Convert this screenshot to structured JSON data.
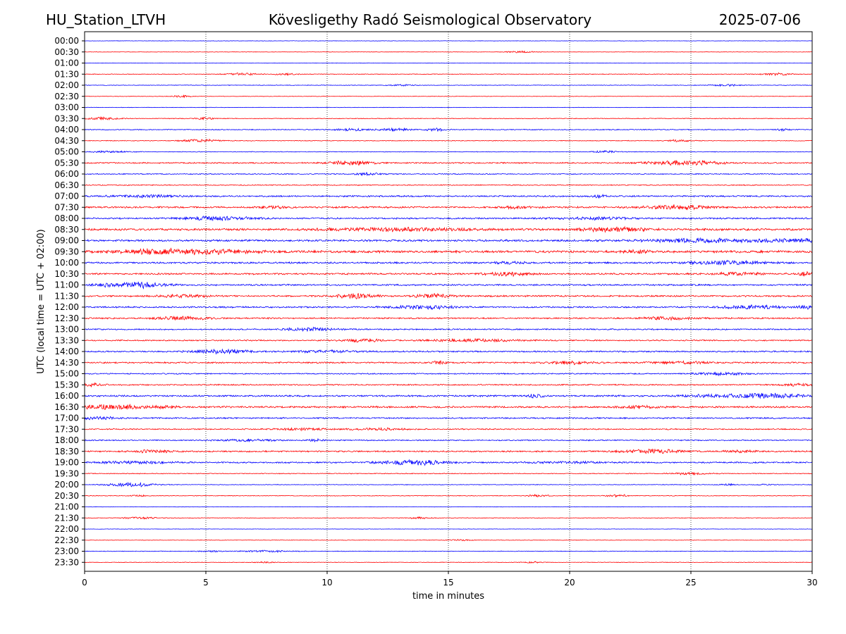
{
  "header": {
    "station": "HU_Station_LTVH",
    "observatory": "Kövesligethy Radó Seismological Observatory",
    "date": "2025-07-06"
  },
  "chart_data": {
    "type": "line",
    "title": "Kövesligethy Radó Seismological Observatory",
    "xlabel": "time in minutes",
    "ylabel": "UTC (local time = UTC + 02:00)",
    "xlim": [
      0,
      30
    ],
    "x_ticks": [
      "0",
      "5",
      "10",
      "15",
      "20",
      "25",
      "30"
    ],
    "x_tick_values": [
      0,
      5,
      10,
      15,
      20,
      25,
      30
    ],
    "vertical_grid": true,
    "colors": [
      "#0000ff",
      "#ff0000"
    ],
    "rows": [
      {
        "label": "00:00",
        "noise": 0.3,
        "events": []
      },
      {
        "label": "00:30",
        "noise": 0.3,
        "events": [
          [
            18,
            0.6,
            1.5
          ]
        ]
      },
      {
        "label": "01:00",
        "noise": 0.3,
        "events": []
      },
      {
        "label": "01:30",
        "noise": 0.5,
        "events": [
          [
            6.5,
            0.6,
            1.8
          ],
          [
            8.3,
            0.5,
            1.5
          ],
          [
            28.5,
            0.6,
            1.5
          ]
        ]
      },
      {
        "label": "02:00",
        "noise": 0.45,
        "events": [
          [
            13,
            0.5,
            1.2
          ],
          [
            26.5,
            0.6,
            1.5
          ]
        ]
      },
      {
        "label": "02:30",
        "noise": 0.35,
        "events": [
          [
            4,
            0.4,
            1.5
          ]
        ]
      },
      {
        "label": "03:00",
        "noise": 0.35,
        "events": []
      },
      {
        "label": "03:30",
        "noise": 0.55,
        "events": [
          [
            0.8,
            0.6,
            2.0
          ],
          [
            5,
            0.4,
            1.5
          ]
        ]
      },
      {
        "label": "04:00",
        "noise": 0.7,
        "events": [
          [
            11,
            0.8,
            1.5
          ],
          [
            12.8,
            0.6,
            2.0
          ],
          [
            14.5,
            0.4,
            2.0
          ],
          [
            28.8,
            0.3,
            1.5
          ]
        ]
      },
      {
        "label": "04:30",
        "noise": 0.55,
        "events": [
          [
            4.8,
            0.8,
            2.0
          ],
          [
            24.5,
            0.5,
            1.5
          ]
        ]
      },
      {
        "label": "05:00",
        "noise": 0.5,
        "events": [
          [
            1,
            0.8,
            1.5
          ],
          [
            21.5,
            0.5,
            1.5
          ]
        ]
      },
      {
        "label": "05:30",
        "noise": 1.0,
        "events": [
          [
            11,
            0.9,
            3.0
          ],
          [
            24.8,
            1.5,
            3.5
          ]
        ]
      },
      {
        "label": "06:00",
        "noise": 0.75,
        "events": [
          [
            11.7,
            0.5,
            2.5
          ]
        ]
      },
      {
        "label": "06:30",
        "noise": 0.7,
        "events": []
      },
      {
        "label": "07:00",
        "noise": 1.2,
        "events": [
          [
            2.5,
            1.5,
            1.5
          ],
          [
            21.2,
            0.3,
            2.5
          ]
        ]
      },
      {
        "label": "07:30",
        "noise": 1.3,
        "events": [
          [
            7.8,
            0.6,
            1.5
          ],
          [
            17.8,
            0.6,
            1.5
          ],
          [
            24.5,
            1.2,
            3.5
          ]
        ]
      },
      {
        "label": "08:00",
        "noise": 1.2,
        "events": [
          [
            5.5,
            1.5,
            2.5
          ],
          [
            21,
            1.5,
            1.5
          ]
        ]
      },
      {
        "label": "08:30",
        "noise": 1.6,
        "events": [
          [
            13,
            3.0,
            2.0
          ],
          [
            21.8,
            1.2,
            3.0
          ]
        ]
      },
      {
        "label": "09:00",
        "noise": 1.5,
        "events": [
          [
            25.8,
            2.5,
            2.5
          ],
          [
            29.2,
            1.0,
            2.0
          ]
        ]
      },
      {
        "label": "09:30",
        "noise": 1.8,
        "events": [
          [
            3.2,
            2.0,
            3.5
          ],
          [
            6,
            1.5,
            1.8
          ],
          [
            22.8,
            0.5,
            2.0
          ]
        ]
      },
      {
        "label": "10:00",
        "noise": 1.3,
        "events": [
          [
            17.5,
            0.6,
            1.5
          ],
          [
            26.5,
            1.5,
            2.5
          ]
        ]
      },
      {
        "label": "10:30",
        "noise": 1.3,
        "events": [
          [
            17.5,
            0.9,
            2.5
          ],
          [
            27,
            1.0,
            2.0
          ],
          [
            29.7,
            0.3,
            3.0
          ]
        ]
      },
      {
        "label": "11:00",
        "noise": 1.2,
        "events": [
          [
            2.3,
            0.9,
            4.0
          ],
          [
            0.7,
            0.4,
            2.5
          ]
        ]
      },
      {
        "label": "11:30",
        "noise": 1.2,
        "events": [
          [
            11.2,
            0.8,
            3.5
          ],
          [
            14.3,
            0.8,
            3.0
          ],
          [
            4,
            1.0,
            2.0
          ]
        ]
      },
      {
        "label": "12:00",
        "noise": 1.2,
        "events": [
          [
            14,
            1.3,
            2.5
          ],
          [
            27.5,
            1.2,
            2.5
          ],
          [
            29.8,
            0.3,
            3.0
          ]
        ]
      },
      {
        "label": "12:30",
        "noise": 1.1,
        "events": [
          [
            4,
            1.0,
            2.5
          ],
          [
            24,
            1.0,
            2.0
          ]
        ]
      },
      {
        "label": "13:00",
        "noise": 1.0,
        "events": [
          [
            9.3,
            1.0,
            2.5
          ]
        ]
      },
      {
        "label": "13:30",
        "noise": 1.0,
        "events": [
          [
            11.5,
            0.8,
            2.0
          ],
          [
            16,
            2.0,
            1.8
          ]
        ]
      },
      {
        "label": "14:00",
        "noise": 1.1,
        "events": [
          [
            5.7,
            1.2,
            3.0
          ],
          [
            10,
            1.2,
            1.5
          ]
        ]
      },
      {
        "label": "14:30",
        "noise": 1.1,
        "events": [
          [
            14.6,
            0.3,
            2.5
          ],
          [
            20,
            1.0,
            2.0
          ],
          [
            24.5,
            1.2,
            1.5
          ]
        ]
      },
      {
        "label": "15:00",
        "noise": 0.9,
        "events": [
          [
            26.2,
            1.0,
            2.0
          ]
        ]
      },
      {
        "label": "15:30",
        "noise": 1.0,
        "events": [
          [
            0.3,
            0.5,
            2.0
          ],
          [
            29.3,
            0.6,
            2.0
          ]
        ]
      },
      {
        "label": "16:00",
        "noise": 1.3,
        "events": [
          [
            18.6,
            0.3,
            2.5
          ],
          [
            28.2,
            1.2,
            3.5
          ],
          [
            26,
            1.5,
            1.5
          ]
        ]
      },
      {
        "label": "16:30",
        "noise": 1.4,
        "events": [
          [
            1,
            1.5,
            3.0
          ],
          [
            3.4,
            0.4,
            2.0
          ],
          [
            22.8,
            0.8,
            1.8
          ]
        ]
      },
      {
        "label": "17:00",
        "noise": 1.1,
        "events": [
          [
            0.5,
            0.8,
            1.8
          ]
        ]
      },
      {
        "label": "17:30",
        "noise": 0.9,
        "events": [
          [
            9,
            1.0,
            1.5
          ],
          [
            12,
            1.2,
            1.5
          ]
        ]
      },
      {
        "label": "18:00",
        "noise": 0.9,
        "events": [
          [
            6.7,
            1.2,
            1.5
          ],
          [
            9.5,
            0.4,
            1.5
          ]
        ]
      },
      {
        "label": "18:30",
        "noise": 1.1,
        "events": [
          [
            2.8,
            0.8,
            1.8
          ],
          [
            23.5,
            1.2,
            3.0
          ],
          [
            27,
            0.6,
            1.8
          ]
        ]
      },
      {
        "label": "19:00",
        "noise": 1.1,
        "events": [
          [
            13.7,
            1.4,
            3.5
          ],
          [
            2,
            1.5,
            1.5
          ],
          [
            20,
            1.5,
            1.2
          ]
        ]
      },
      {
        "label": "19:30",
        "noise": 0.6,
        "events": [
          [
            25,
            0.8,
            1.5
          ]
        ]
      },
      {
        "label": "20:00",
        "noise": 0.5,
        "events": [
          [
            2,
            1.0,
            3.0
          ],
          [
            26.5,
            0.3,
            1.2
          ],
          [
            28,
            0.3,
            1.0
          ]
        ]
      },
      {
        "label": "20:30",
        "noise": 0.5,
        "events": [
          [
            2.2,
            0.3,
            1.0
          ],
          [
            18.7,
            0.5,
            1.5
          ],
          [
            22,
            0.5,
            1.8
          ]
        ]
      },
      {
        "label": "21:00",
        "noise": 0.3,
        "events": []
      },
      {
        "label": "21:30",
        "noise": 0.45,
        "events": [
          [
            2.2,
            0.8,
            1.5
          ],
          [
            13.8,
            0.5,
            1.2
          ]
        ]
      },
      {
        "label": "22:00",
        "noise": 0.3,
        "events": []
      },
      {
        "label": "22:30",
        "noise": 0.4,
        "events": [
          [
            15.5,
            0.4,
            1.2
          ]
        ]
      },
      {
        "label": "23:00",
        "noise": 0.45,
        "events": [
          [
            7.5,
            1.0,
            1.5
          ],
          [
            5.2,
            0.5,
            1.2
          ]
        ]
      },
      {
        "label": "23:30",
        "noise": 0.4,
        "events": [
          [
            7.5,
            0.4,
            1.2
          ],
          [
            18.5,
            0.4,
            1.2
          ]
        ]
      }
    ]
  }
}
